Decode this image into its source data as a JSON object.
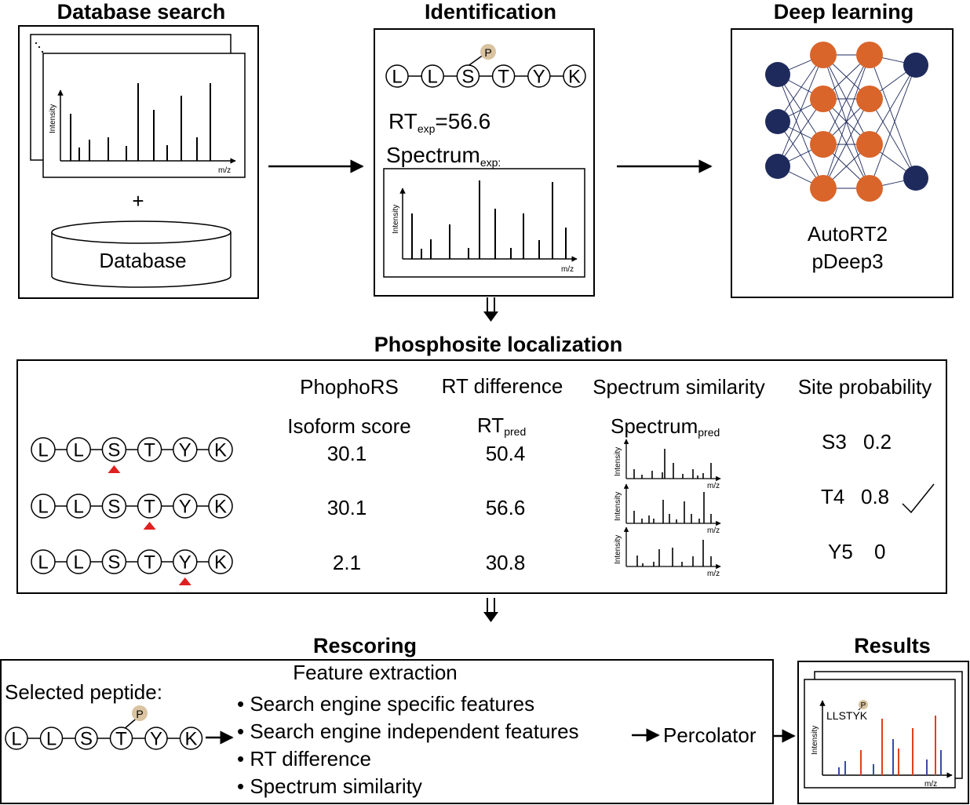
{
  "panels": {
    "database_search": {
      "title": "Database search",
      "plus": "+",
      "database_label": "Database",
      "axis_y": "Intensity",
      "axis_x": "m/z"
    },
    "identification": {
      "title": "Identification",
      "peptide": [
        "L",
        "L",
        "S",
        "T",
        "Y",
        "K"
      ],
      "phospho": "P",
      "rt_prefix": "RT",
      "rt_sub": "exp",
      "rt_value": "=56.6",
      "spectrum_label": "Spectrum",
      "spectrum_sub": "exp:",
      "axis_y": "Intensity",
      "axis_x": "m/z"
    },
    "deep_learning": {
      "title": "Deep learning",
      "model_1": "AutoRT2",
      "model_2": "pDeep3",
      "colors": {
        "outer": "#1f2a5c",
        "hidden": "#d9652a"
      }
    },
    "phosphosite": {
      "title": "Phosphosite localization",
      "headers": {
        "phophors": "PhophoRS",
        "rt_diff": "RT difference",
        "spec_sim": "Spectrum similarity",
        "site_prob": "Site probability"
      },
      "isoform_label": "Isoform score",
      "rt_pred_prefix": "RT",
      "rt_pred_sub": "pred",
      "spectrum_pred_prefix": "Spectrum",
      "spectrum_pred_sub": "pred",
      "axis_y": "Intensity",
      "axis_x": "m/z",
      "rows": [
        {
          "residues": [
            "L",
            "L",
            "S",
            "T",
            "Y",
            "K"
          ],
          "marked_index": 2,
          "isoform_score": "30.1",
          "rt_pred": "50.4",
          "site": "S3",
          "prob": "0.2"
        },
        {
          "residues": [
            "L",
            "L",
            "S",
            "T",
            "Y",
            "K"
          ],
          "marked_index": 3,
          "isoform_score": "30.1",
          "rt_pred": "56.6",
          "site": "T4",
          "prob": "0.8"
        },
        {
          "residues": [
            "L",
            "L",
            "S",
            "T",
            "Y",
            "K"
          ],
          "marked_index": 4,
          "isoform_score": "2.1",
          "rt_pred": "30.8",
          "site": "Y5",
          "prob": "0"
        }
      ],
      "marker_color": "#e02020"
    },
    "rescoring": {
      "title": "Rescoring",
      "feature_title": "Feature extraction",
      "selected_label": "Selected peptide:",
      "peptide": [
        "L",
        "L",
        "S",
        "T",
        "Y",
        "K"
      ],
      "phospho": "P",
      "features": [
        "• Search engine specific features",
        "• Search engine independent features",
        "• RT difference",
        "• Spectrum similarity"
      ],
      "percolator": "Percolator"
    },
    "results": {
      "title": "Results",
      "peptide_label": "LLSTYK",
      "phospho": "P",
      "axis_y": "Intensity",
      "axis_x": "m/z",
      "colors": {
        "b_ion": "#e2401c",
        "y_ion": "#3a4aa8"
      }
    }
  }
}
